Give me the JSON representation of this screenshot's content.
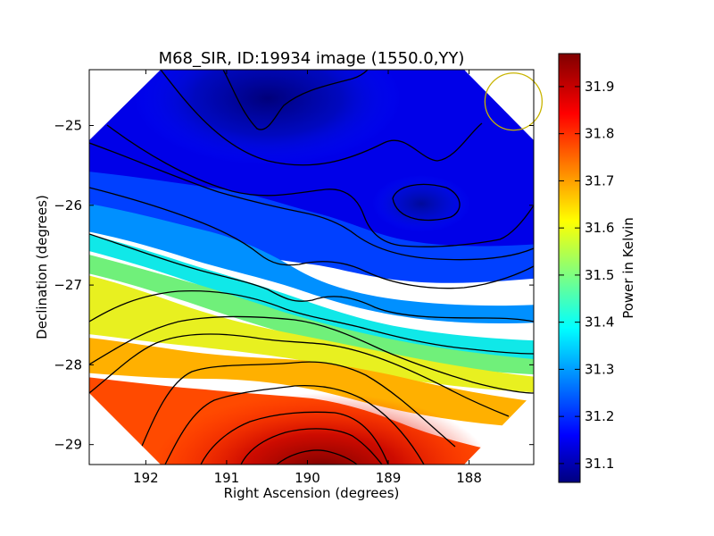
{
  "chart_data": {
    "type": "heatmap",
    "title": "M68_SIR, ID:19934 image (1550.0,YY)",
    "xlabel": "Right Ascension (degrees)",
    "ylabel": "Declination (degrees)",
    "xlim": [
      192.7,
      187.2
    ],
    "ylim": [
      -29.25,
      -24.3
    ],
    "x_ticks": [
      192,
      191,
      190,
      189,
      188
    ],
    "y_ticks": [
      -25,
      -26,
      -27,
      -28,
      -29
    ],
    "colorbar": {
      "label": "Power in Kelvin",
      "range": [
        31.06,
        31.97
      ],
      "ticks": [
        31.1,
        31.2,
        31.3,
        31.4,
        31.5,
        31.6,
        31.7,
        31.8,
        31.9
      ],
      "colormap": "jet"
    },
    "contour_lines": true,
    "beam_circle": {
      "ra": 187.45,
      "dec": -24.7,
      "color": "#c8b400"
    },
    "field_shape": "octagon",
    "features": [
      {
        "name": "minimum",
        "ra": 190.5,
        "dec": -24.6,
        "value": 31.07
      },
      {
        "name": "local-minimum",
        "ra": 188.45,
        "dec": -25.95,
        "value": 31.09
      },
      {
        "name": "maximum",
        "ra": 189.8,
        "dec": -29.1,
        "value": 31.96
      }
    ]
  }
}
